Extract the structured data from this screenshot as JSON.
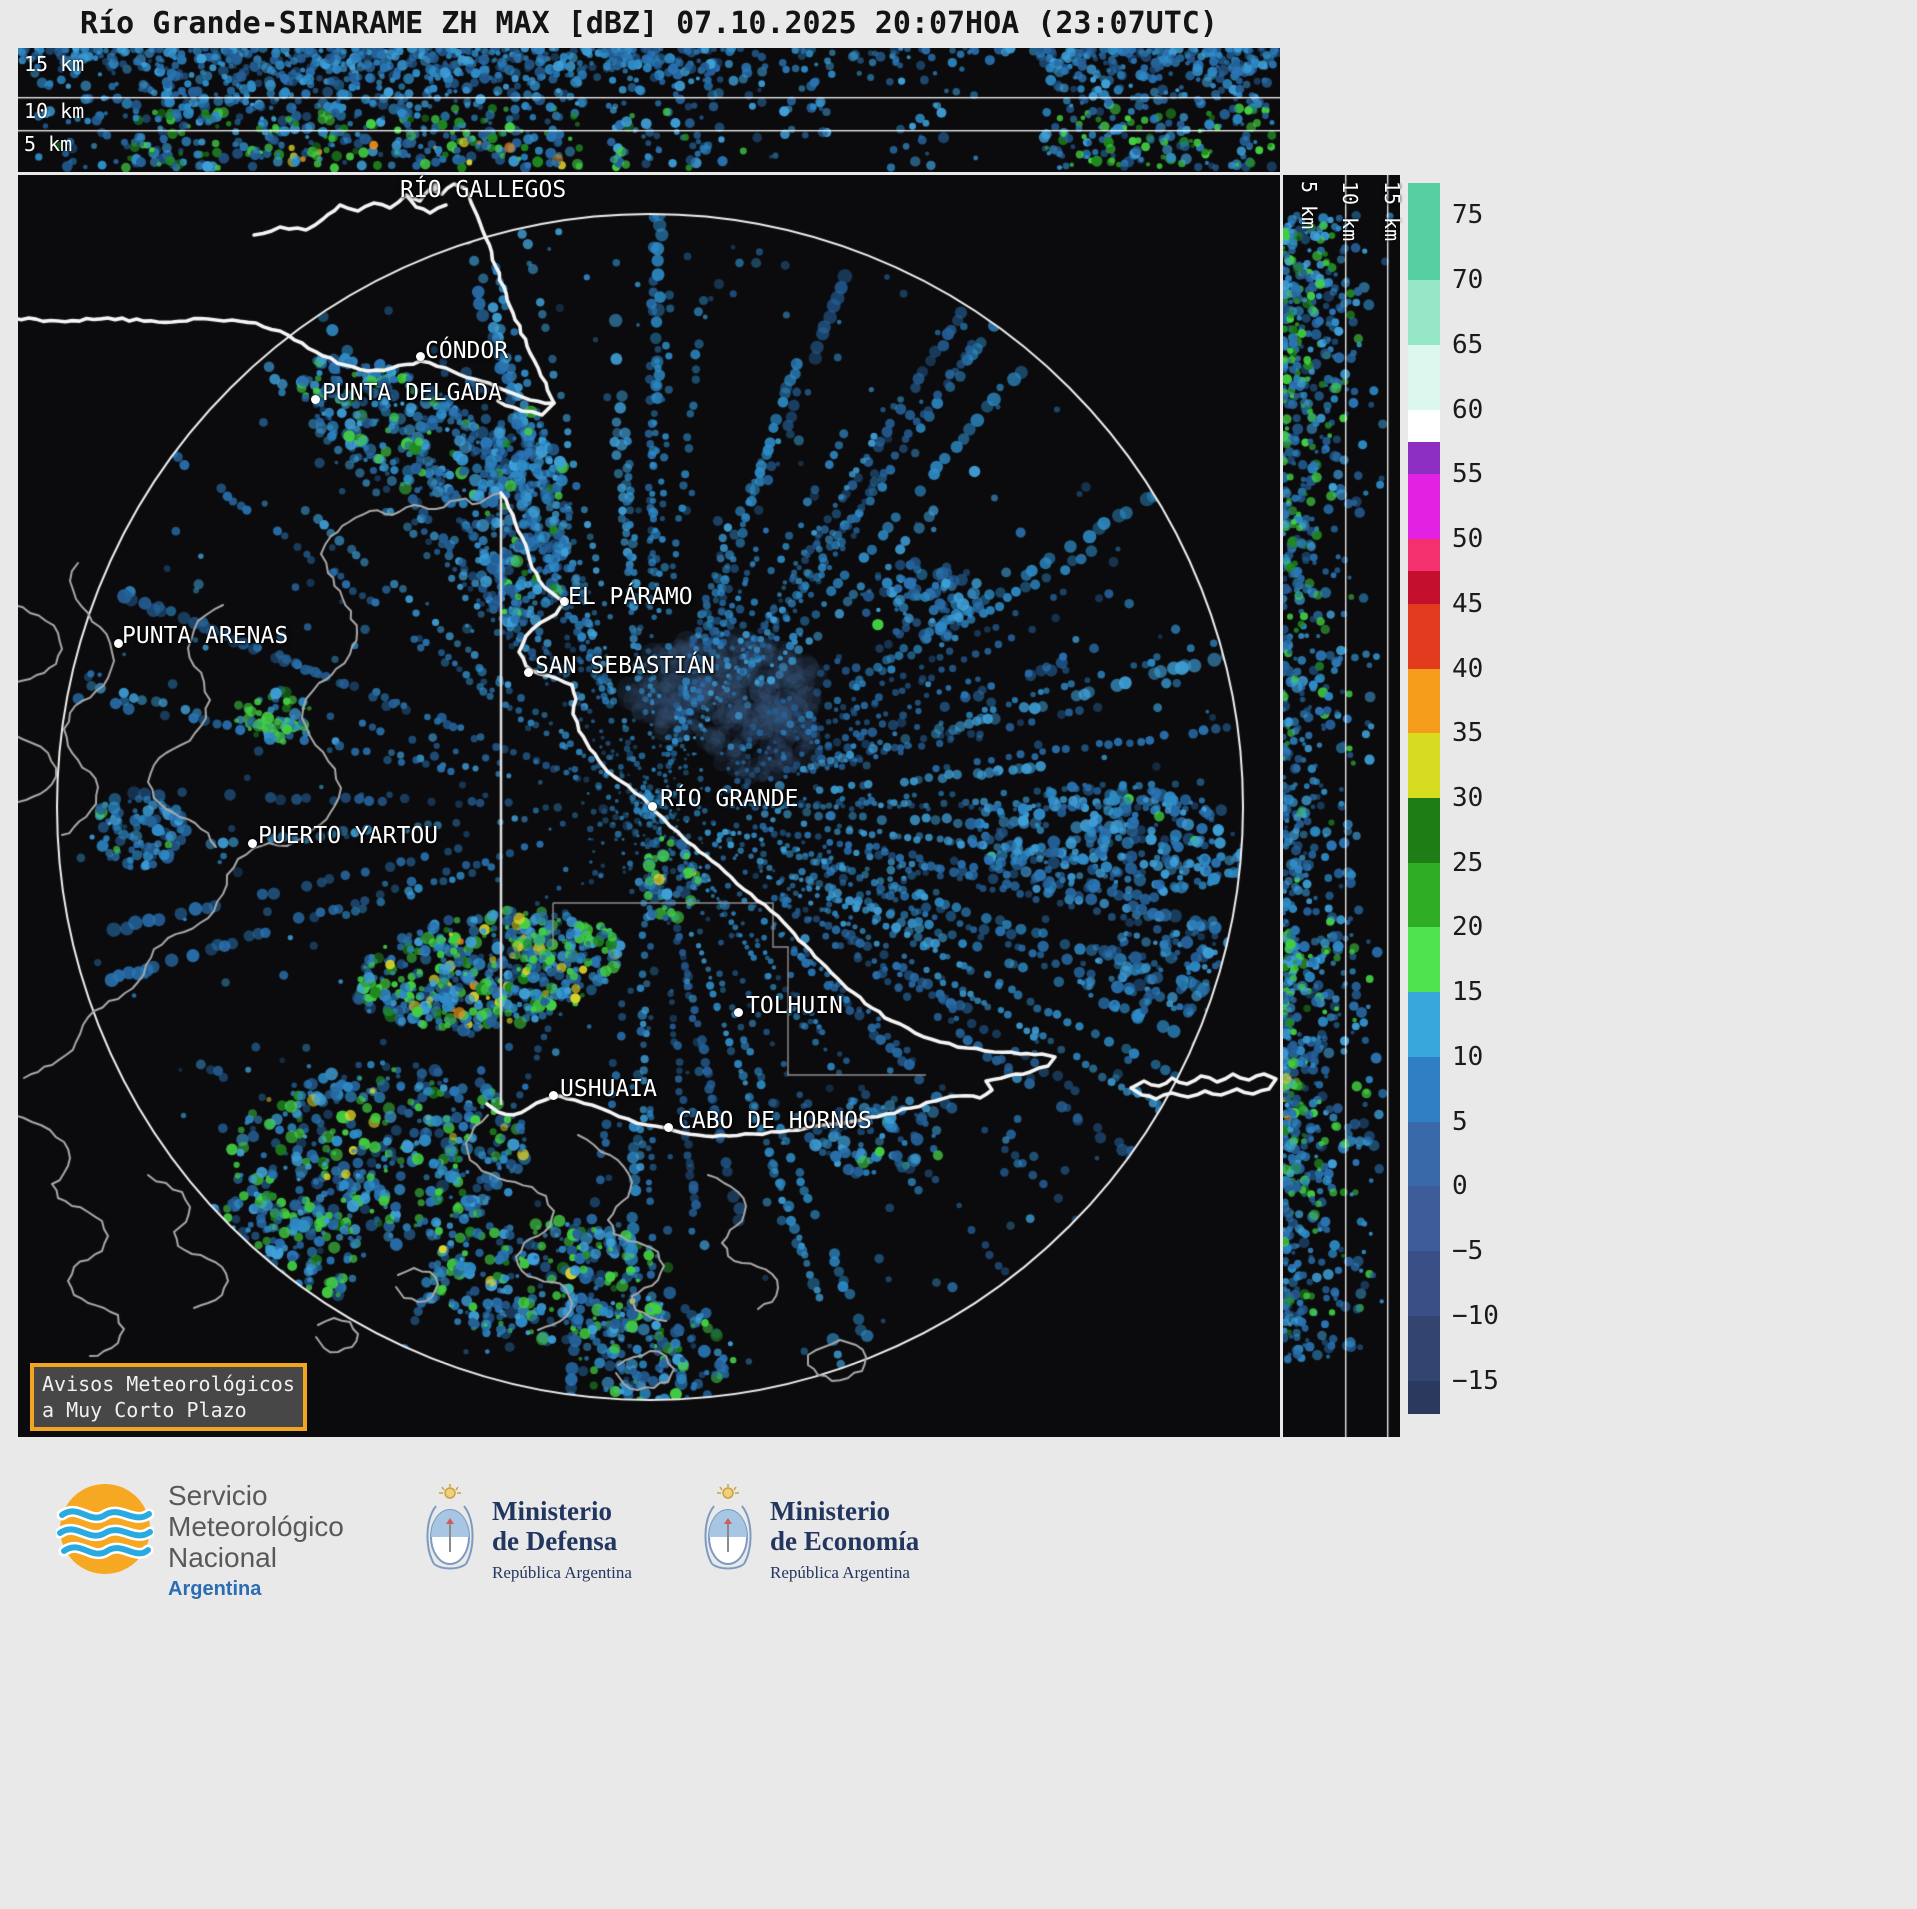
{
  "title": "Río Grande-SINARAME ZH MAX [dBZ] 07.10.2025 20:07HOA (23:07UTC)",
  "top_panel": {
    "altitude_labels": [
      "15 km",
      "10 km",
      "5 km"
    ]
  },
  "right_panel": {
    "altitude_labels": [
      "5 km",
      "10 km",
      "15 km"
    ]
  },
  "colorbar": {
    "units": "dBZ",
    "range": [
      -17.5,
      77.5
    ],
    "tick_values": [
      75,
      70,
      65,
      60,
      55,
      50,
      45,
      40,
      35,
      30,
      25,
      20,
      15,
      10,
      5,
      0,
      -5,
      -10,
      -15
    ],
    "tick_labels": [
      "75",
      "70",
      "65",
      "60",
      "55",
      "50",
      "45",
      "40",
      "35",
      "30",
      "25",
      "20",
      "15",
      "10",
      "5",
      "0",
      "−5",
      "−10",
      "−15"
    ],
    "stops": [
      {
        "from": 77.5,
        "to": 70,
        "color": "#57cfa0"
      },
      {
        "from": 70,
        "to": 65,
        "color": "#96e7c8"
      },
      {
        "from": 65,
        "to": 60,
        "color": "#dcf7ee"
      },
      {
        "from": 60,
        "to": 57.5,
        "color": "#ffffff"
      },
      {
        "from": 57.5,
        "to": 55,
        "color": "#8c2fc2"
      },
      {
        "from": 55,
        "to": 50,
        "color": "#e321e3"
      },
      {
        "from": 50,
        "to": 47.5,
        "color": "#f5306e"
      },
      {
        "from": 47.5,
        "to": 45,
        "color": "#c40f2e"
      },
      {
        "from": 45,
        "to": 40,
        "color": "#e23a1c"
      },
      {
        "from": 40,
        "to": 35,
        "color": "#f59c1a"
      },
      {
        "from": 35,
        "to": 30,
        "color": "#d8dc20"
      },
      {
        "from": 30,
        "to": 25,
        "color": "#1e7d14"
      },
      {
        "from": 25,
        "to": 20,
        "color": "#2fae24"
      },
      {
        "from": 20,
        "to": 15,
        "color": "#4fe44f"
      },
      {
        "from": 15,
        "to": 10,
        "color": "#38a8dc"
      },
      {
        "from": 10,
        "to": 5,
        "color": "#2f7fc2"
      },
      {
        "from": 5,
        "to": 0,
        "color": "#3a69aa"
      },
      {
        "from": 0,
        "to": -5,
        "color": "#3d5c99"
      },
      {
        "from": -5,
        "to": -10,
        "color": "#3a4f85"
      },
      {
        "from": -10,
        "to": -15,
        "color": "#334471"
      },
      {
        "from": -15,
        "to": -17.5,
        "color": "#2c395f"
      }
    ]
  },
  "map": {
    "cities": [
      {
        "name": "RÍO GALLEGOS",
        "label": [
          382,
          2
        ],
        "dot": [
          416,
          11
        ]
      },
      {
        "name": "CÓNDOR",
        "label": [
          407,
          163
        ],
        "dot": [
          402,
          181
        ]
      },
      {
        "name": "PUNTA DELGADA",
        "label": [
          304,
          205
        ],
        "dot": [
          297,
          224
        ]
      },
      {
        "name": "EL PÁRAMO",
        "label": [
          550,
          409
        ],
        "dot": [
          546,
          426
        ]
      },
      {
        "name": "SAN SEBASTIÁN",
        "label": [
          517,
          478
        ],
        "dot": [
          510,
          497
        ]
      },
      {
        "name": "PUNTA ARENAS",
        "label": [
          104,
          448
        ],
        "dot": [
          100,
          468
        ]
      },
      {
        "name": "RÍO GRANDE",
        "label": [
          642,
          611
        ],
        "dot": [
          634,
          631
        ]
      },
      {
        "name": "PUERTO YARTOU",
        "label": [
          240,
          648
        ],
        "dot": [
          234,
          668
        ]
      },
      {
        "name": "TOLHUIN",
        "label": [
          728,
          818
        ],
        "dot": [
          720,
          837
        ]
      },
      {
        "name": "USHUAIA",
        "label": [
          542,
          901
        ],
        "dot": [
          535,
          920
        ]
      },
      {
        "name": "CABO DE HORNOS",
        "label": [
          660,
          933
        ],
        "dot": [
          650,
          952
        ]
      }
    ],
    "warning_box": {
      "line1": "Avisos Meteorológicos",
      "line2": "a Muy Corto Plazo"
    }
  },
  "footer": {
    "smn": {
      "name_lines": [
        "Servicio",
        "Meteorológico",
        "Nacional"
      ],
      "country": "Argentina"
    },
    "defensa": {
      "ministry_lines": [
        "Ministerio",
        "de Defensa"
      ],
      "subtitle": "República Argentina"
    },
    "economia": {
      "ministry_lines": [
        "Ministerio",
        "de Economía"
      ],
      "subtitle": "República Argentina"
    }
  }
}
